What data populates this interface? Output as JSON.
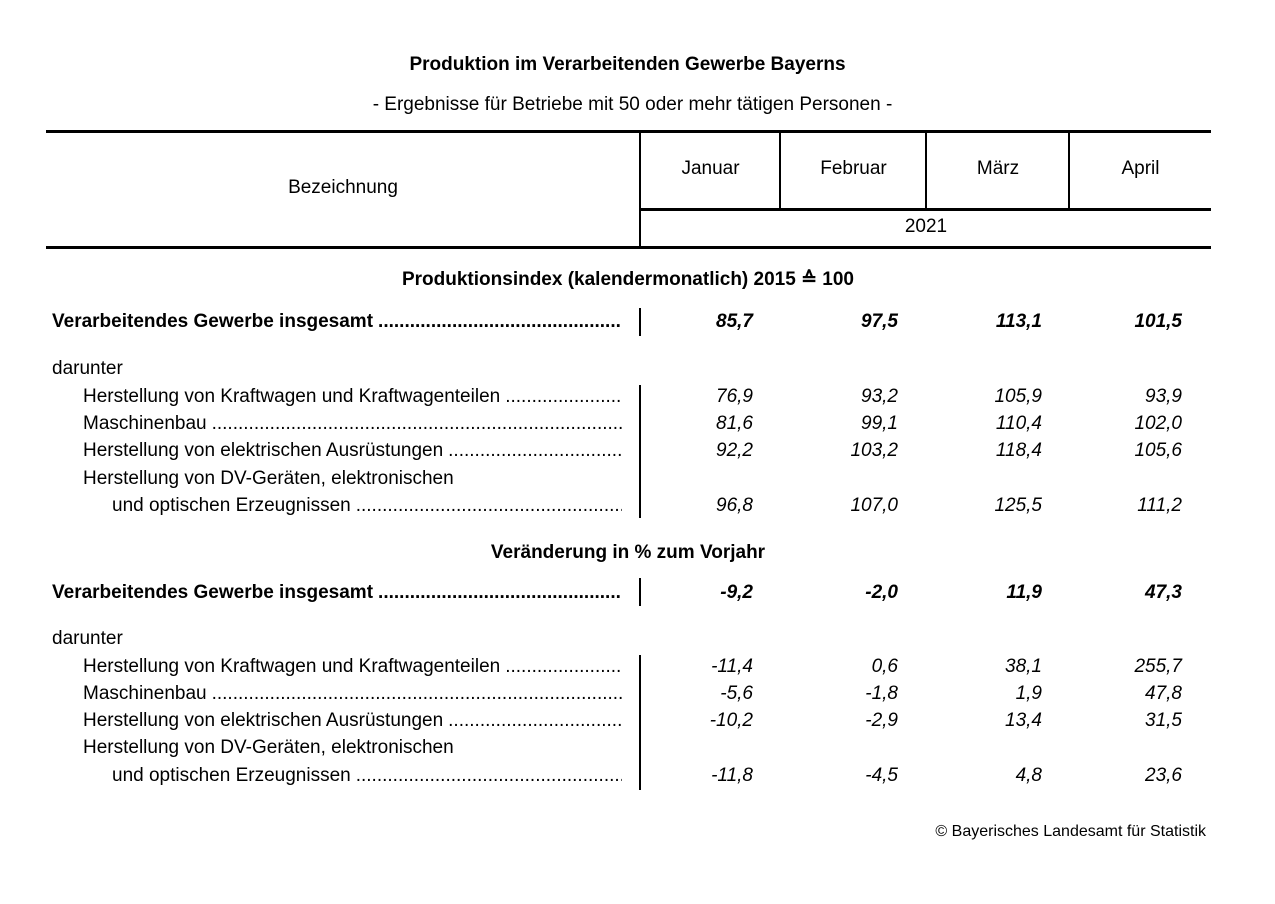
{
  "title": "Produktion im Verarbeitenden Gewerbe Bayerns",
  "subtitle": "- Ergebnisse für Betriebe mit 50 oder mehr tätigen Personen -",
  "header": {
    "label_column": "Bezeichnung",
    "months": [
      "Januar",
      "Februar",
      "März",
      "April"
    ],
    "year": "2021"
  },
  "sections": [
    {
      "heading": "Produktionsindex (kalendermonatlich) 2015 ≙ 100",
      "rows": [
        {
          "label": "Verarbeitendes Gewerbe insgesamt",
          "bold": true,
          "indent": 0,
          "dots": true,
          "values": [
            "85,7",
            "97,5",
            "113,1",
            "101,5"
          ]
        },
        {
          "label": "darunter",
          "indent": 0,
          "dots": false,
          "values": []
        },
        {
          "label": "Herstellung von Kraftwagen und Kraftwagenteilen",
          "indent": 1,
          "dots": true,
          "values": [
            "76,9",
            "93,2",
            "105,9",
            "93,9"
          ]
        },
        {
          "label": "Maschinenbau",
          "indent": 1,
          "dots": true,
          "values": [
            "81,6",
            "99,1",
            "110,4",
            "102,0"
          ]
        },
        {
          "label": "Herstellung von elektrischen Ausrüstungen",
          "indent": 1,
          "dots": true,
          "values": [
            "92,2",
            "103,2",
            "118,4",
            "105,6"
          ]
        },
        {
          "label": "Herstellung von DV-Geräten, elektronischen",
          "indent": 1,
          "dots": false,
          "values": []
        },
        {
          "label": "und optischen Erzeugnissen",
          "indent": 2,
          "dots": true,
          "values": [
            "96,8",
            "107,0",
            "125,5",
            "111,2"
          ]
        }
      ]
    },
    {
      "heading": "Veränderung in % zum Vorjahr",
      "rows": [
        {
          "label": "Verarbeitendes Gewerbe insgesamt",
          "bold": true,
          "indent": 0,
          "dots": true,
          "values": [
            "-9,2",
            "-2,0",
            "11,9",
            "47,3"
          ]
        },
        {
          "label": "darunter",
          "indent": 0,
          "dots": false,
          "values": []
        },
        {
          "label": "Herstellung von Kraftwagen und Kraftwagenteilen",
          "indent": 1,
          "dots": true,
          "values": [
            "-11,4",
            "0,6",
            "38,1",
            "255,7"
          ]
        },
        {
          "label": "Maschinenbau",
          "indent": 1,
          "dots": true,
          "values": [
            "-5,6",
            "-1,8",
            "1,9",
            "47,8"
          ]
        },
        {
          "label": "Herstellung von elektrischen Ausrüstungen",
          "indent": 1,
          "dots": true,
          "values": [
            "-10,2",
            "-2,9",
            "13,4",
            "31,5"
          ]
        },
        {
          "label": "Herstellung von DV-Geräten, elektronischen",
          "indent": 1,
          "dots": false,
          "values": []
        },
        {
          "label": "und optischen Erzeugnissen",
          "indent": 2,
          "dots": true,
          "values": [
            "-11,8",
            "-4,5",
            "4,8",
            "23,6"
          ]
        }
      ]
    }
  ],
  "footer": "© Bayerisches Landesamt für Statistik"
}
